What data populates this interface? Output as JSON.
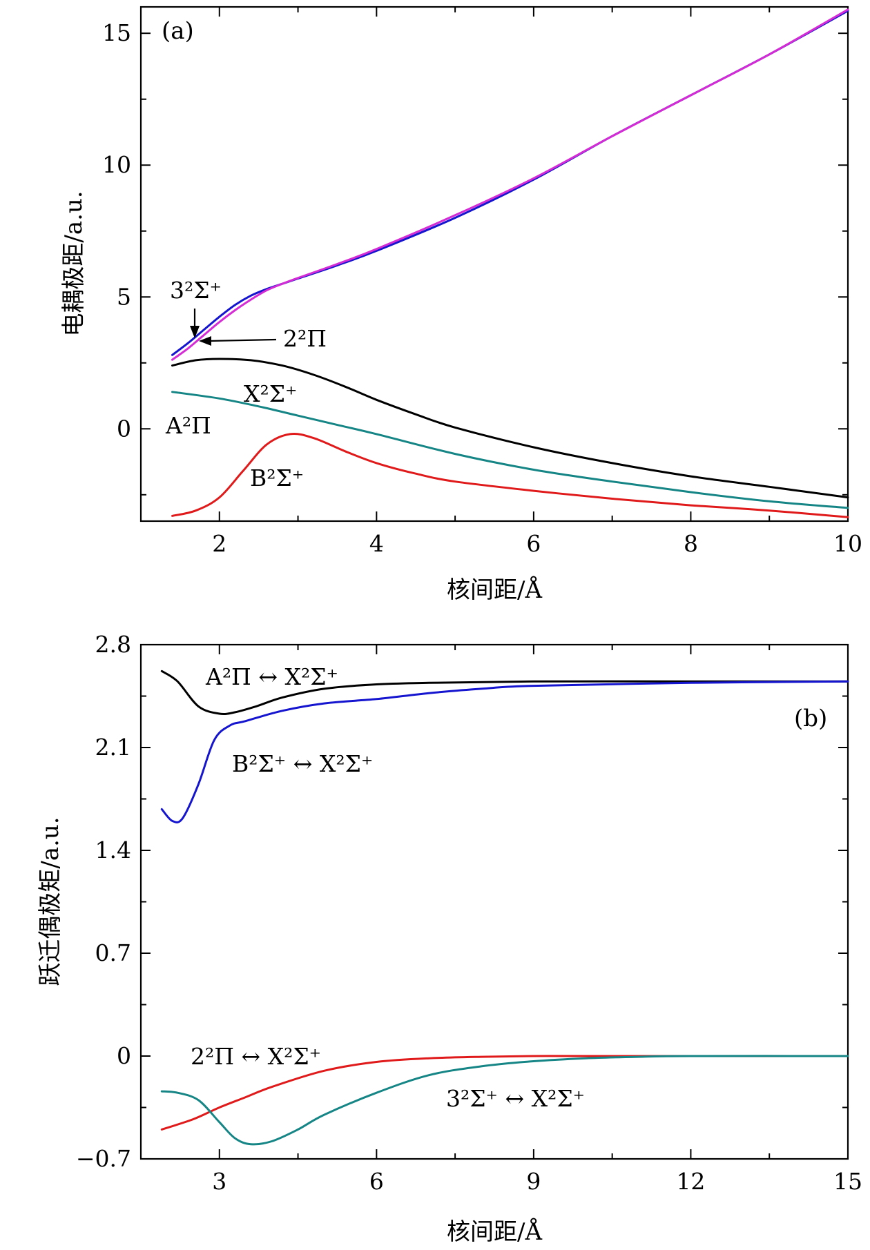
{
  "chart_data": [
    {
      "type": "line",
      "panel_label": "(a)",
      "xlabel": "核间距/Å",
      "ylabel": "电耦极距/a.u.",
      "xlim": [
        1,
        10
      ],
      "ylim": [
        -3.5,
        16
      ],
      "xticks": [
        2,
        4,
        6,
        8,
        10
      ],
      "yticks": [
        0,
        5,
        10,
        15
      ],
      "series": [
        {
          "name": "3²Σ⁺",
          "color": "#1515d0",
          "x": [
            1.4,
            1.6,
            1.8,
            2.0,
            2.2,
            2.4,
            2.6,
            2.8,
            3.0,
            3.5,
            4.0,
            5.0,
            6.0,
            7.0,
            8.0,
            9.0,
            10.0
          ],
          "y": [
            2.8,
            3.25,
            3.75,
            4.25,
            4.7,
            5.05,
            5.3,
            5.5,
            5.7,
            6.2,
            6.75,
            8.0,
            9.45,
            11.1,
            12.65,
            14.2,
            15.85
          ]
        },
        {
          "name": "2²Π",
          "color": "#d42bd4",
          "x": [
            1.4,
            1.6,
            1.8,
            2.0,
            2.2,
            2.4,
            2.6,
            2.8,
            3.0,
            3.5,
            4.0,
            5.0,
            6.0,
            7.0,
            8.0,
            9.0,
            10.0
          ],
          "y": [
            2.62,
            3.05,
            3.55,
            4.05,
            4.5,
            4.9,
            5.25,
            5.5,
            5.72,
            6.25,
            6.82,
            8.1,
            9.5,
            11.1,
            12.65,
            14.2,
            15.9
          ]
        },
        {
          "name": "A²Π",
          "color": "#000000",
          "x": [
            1.4,
            1.7,
            2.0,
            2.4,
            2.8,
            3.2,
            3.6,
            4.0,
            4.5,
            5.0,
            6.0,
            7.0,
            8.0,
            9.0,
            10.0
          ],
          "y": [
            2.4,
            2.6,
            2.65,
            2.6,
            2.4,
            2.05,
            1.6,
            1.1,
            0.55,
            0.05,
            -0.7,
            -1.3,
            -1.8,
            -2.2,
            -2.6
          ]
        },
        {
          "name": "X²Σ⁺",
          "color": "#168585",
          "x": [
            1.4,
            2.0,
            2.5,
            3.0,
            3.5,
            4.0,
            5.0,
            6.0,
            7.0,
            8.0,
            9.0,
            10.0
          ],
          "y": [
            1.4,
            1.15,
            0.85,
            0.5,
            0.15,
            -0.2,
            -0.95,
            -1.55,
            -2.0,
            -2.4,
            -2.75,
            -3.0
          ]
        },
        {
          "name": "B²Σ⁺",
          "color": "#e01a1a",
          "x": [
            1.4,
            1.7,
            2.0,
            2.3,
            2.6,
            2.9,
            3.2,
            3.6,
            4.0,
            4.5,
            5.0,
            6.0,
            7.0,
            8.0,
            9.0,
            10.0
          ],
          "y": [
            -3.3,
            -3.1,
            -2.6,
            -1.6,
            -0.6,
            -0.2,
            -0.35,
            -0.85,
            -1.3,
            -1.7,
            -2.0,
            -2.35,
            -2.65,
            -2.9,
            -3.1,
            -3.35
          ]
        }
      ],
      "annotations": [
        {
          "text": "3²Σ⁺"
        },
        {
          "text": "2²Π"
        },
        {
          "text": "X²Σ⁺"
        },
        {
          "text": "A²Π"
        },
        {
          "text": "B²Σ⁺"
        }
      ]
    },
    {
      "type": "line",
      "panel_label": "(b)",
      "xlabel": "核间距/Å",
      "ylabel": "跃迁偶极矩/a.u.",
      "xlim": [
        1.5,
        15
      ],
      "ylim": [
        -0.7,
        2.8
      ],
      "xticks": [
        3,
        6,
        9,
        12,
        15
      ],
      "yticks": [
        -0.7,
        0,
        0.7,
        1.4,
        2.1,
        2.8
      ],
      "ytick_labels": [
        "−0.7",
        "0",
        "0.7",
        "1.4",
        "2.1",
        "2.8"
      ],
      "series": [
        {
          "name": "A²Π ↔ X²Σ⁺",
          "color": "#000000",
          "x": [
            1.9,
            2.2,
            2.6,
            3.0,
            3.3,
            3.7,
            4.2,
            5.0,
            6.0,
            7.0,
            9.0,
            12.0,
            15.0
          ],
          "y": [
            2.62,
            2.55,
            2.38,
            2.33,
            2.34,
            2.38,
            2.44,
            2.5,
            2.53,
            2.54,
            2.55,
            2.55,
            2.55
          ]
        },
        {
          "name": "B²Σ⁺ ↔ X²Σ⁺",
          "color": "#1515d0",
          "x": [
            1.9,
            2.1,
            2.3,
            2.6,
            2.9,
            3.2,
            3.5,
            4.2,
            5.0,
            6.0,
            7.0,
            8.0,
            9.0,
            12.0,
            15.0
          ],
          "y": [
            1.68,
            1.6,
            1.62,
            1.85,
            2.15,
            2.25,
            2.28,
            2.35,
            2.4,
            2.43,
            2.47,
            2.5,
            2.52,
            2.54,
            2.55
          ]
        },
        {
          "name": "2²Π ↔ X²Σ⁺",
          "color": "#e01a1a",
          "x": [
            1.9,
            2.5,
            3.0,
            3.5,
            4.0,
            5.0,
            6.0,
            7.0,
            8.0,
            9.0,
            10.0,
            12.0,
            15.0
          ],
          "y": [
            -0.5,
            -0.43,
            -0.35,
            -0.28,
            -0.21,
            -0.1,
            -0.04,
            -0.015,
            -0.005,
            0.0,
            0.0,
            0.0,
            0.0
          ]
        },
        {
          "name": "3²Σ⁺ ↔ X²Σ⁺",
          "color": "#168585",
          "x": [
            1.9,
            2.2,
            2.6,
            3.0,
            3.3,
            3.6,
            4.0,
            4.5,
            5.0,
            6.0,
            7.0,
            8.0,
            9.0,
            10.0,
            11.0,
            12.0,
            15.0
          ],
          "y": [
            -0.24,
            -0.25,
            -0.3,
            -0.45,
            -0.56,
            -0.6,
            -0.58,
            -0.5,
            -0.4,
            -0.25,
            -0.13,
            -0.07,
            -0.035,
            -0.015,
            -0.005,
            0.0,
            0.0
          ]
        }
      ],
      "annotations": [
        {
          "text": "A²Π ↔ X²Σ⁺"
        },
        {
          "text": "B²Σ⁺ ↔ X²Σ⁺"
        },
        {
          "text": "2²Π ↔ X²Σ⁺"
        },
        {
          "text": "3²Σ⁺ ↔ X²Σ⁺"
        }
      ]
    }
  ]
}
